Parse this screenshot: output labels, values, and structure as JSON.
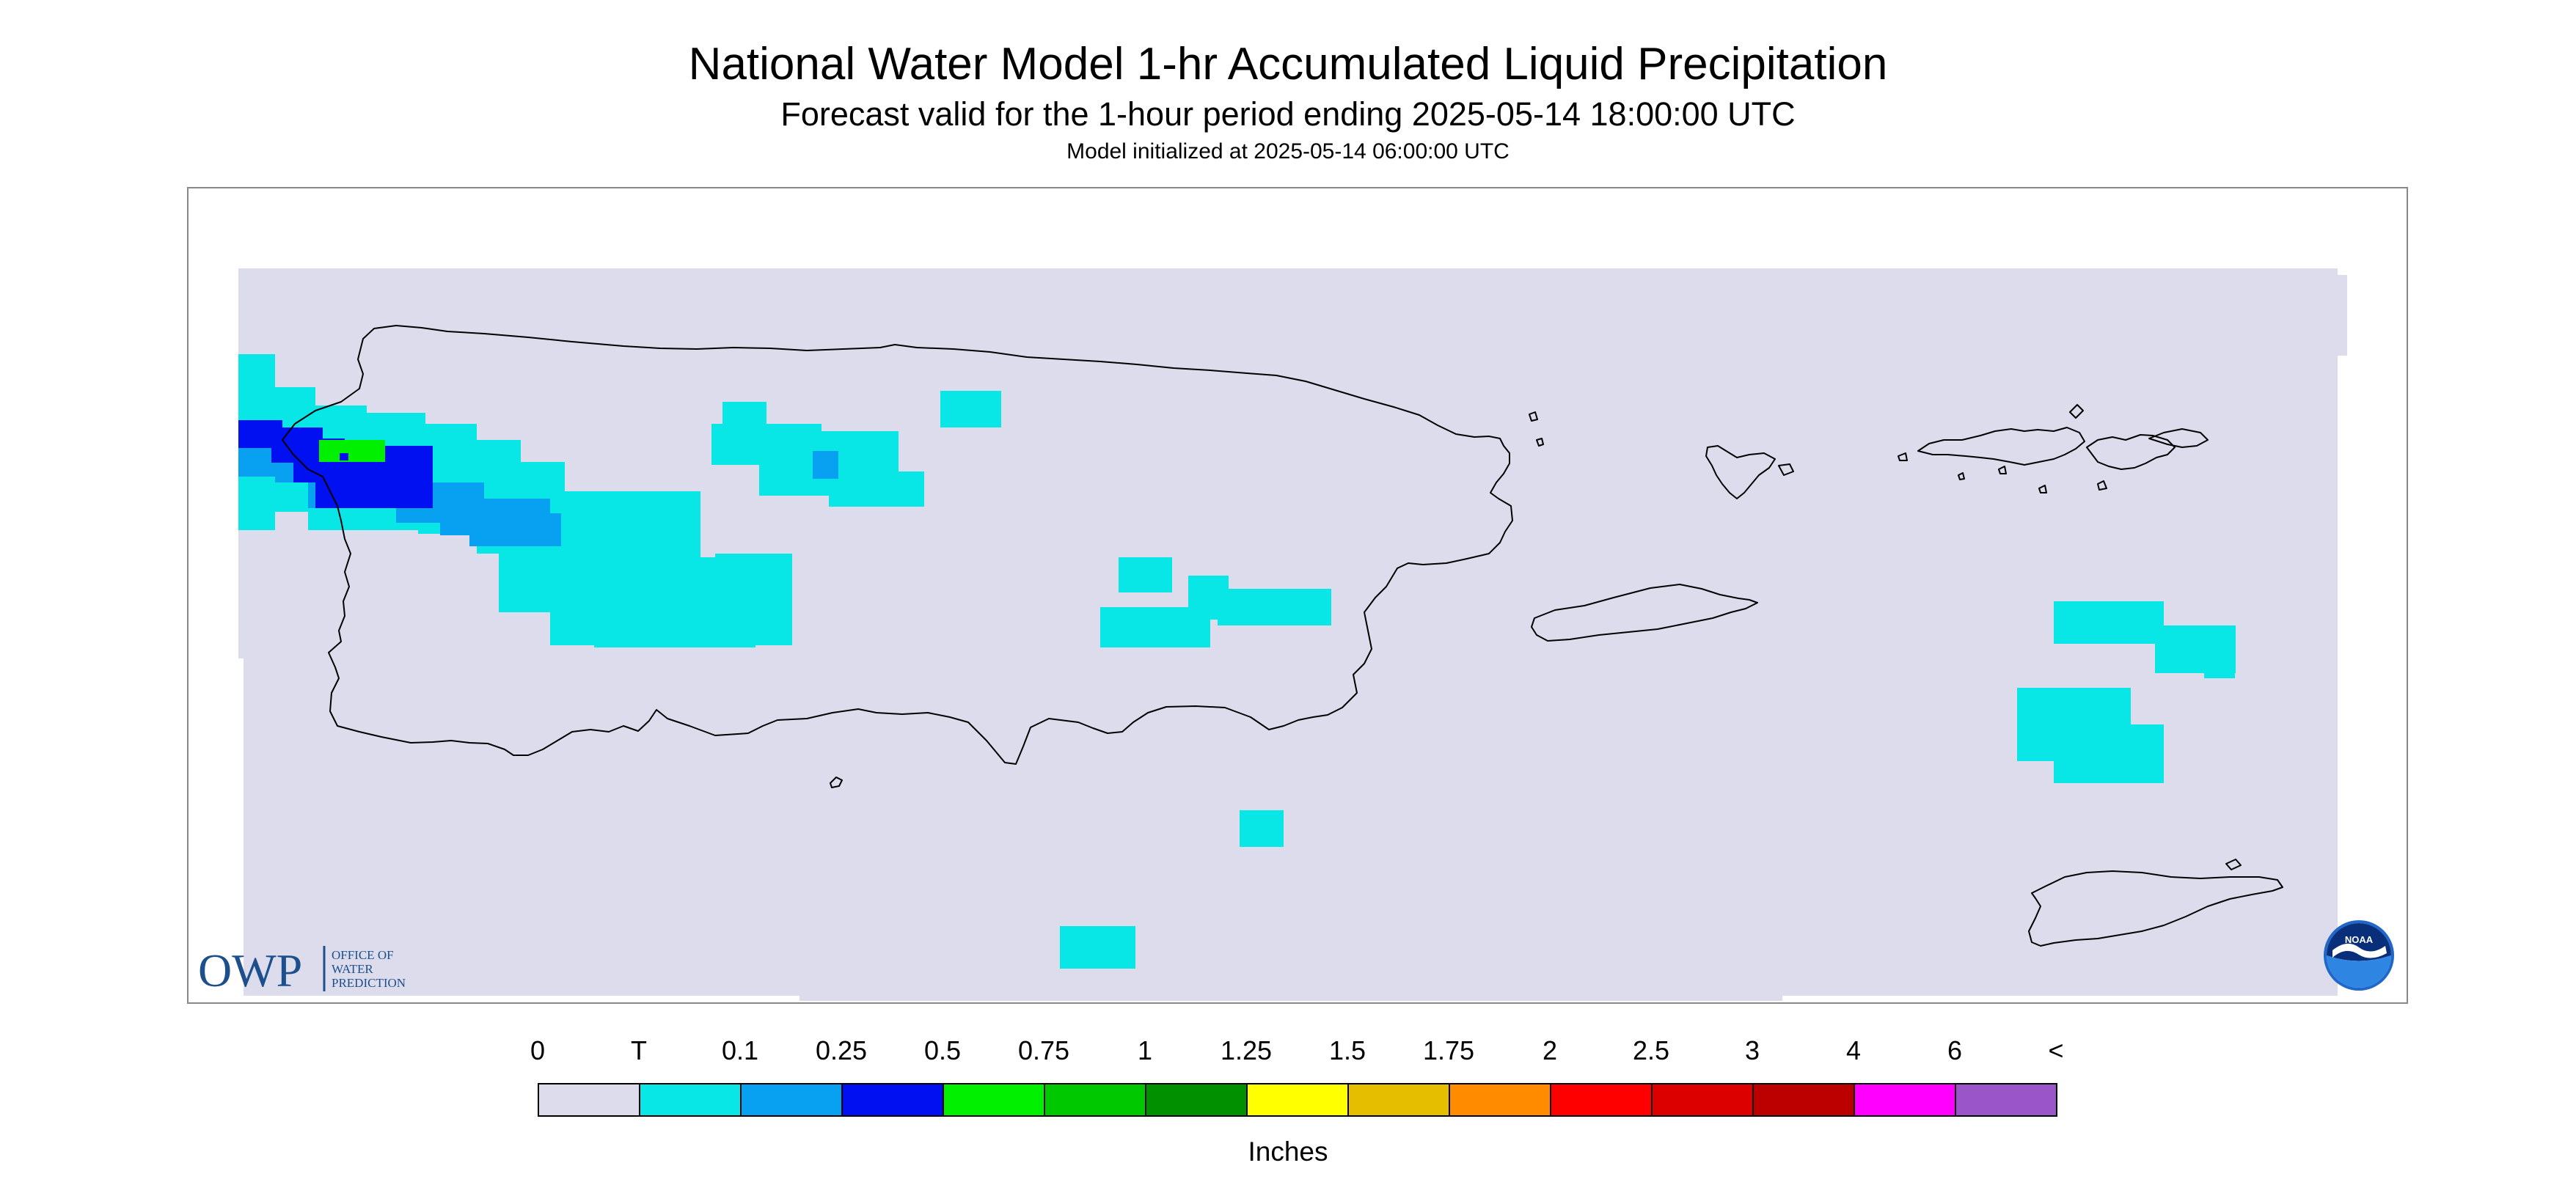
{
  "title": "National Water Model 1-hr Accumulated Liquid Precipitation",
  "subtitle": "Forecast valid for the 1-hour period ending 2025-05-14 18:00:00 UTC",
  "init_line": "Model initialized at 2025-05-14 06:00:00 UTC",
  "logo": {
    "owp_mark": "OWP",
    "owp_text": [
      "OFFICE OF",
      "WATER",
      "PREDICTION"
    ],
    "noaa_text": "NOAA"
  },
  "legend": {
    "units": "Inches",
    "labels": [
      "0",
      "T",
      "0.1",
      "0.25",
      "0.5",
      "0.75",
      "1",
      "1.25",
      "1.5",
      "1.75",
      "2",
      "2.5",
      "3",
      "4",
      "6",
      "<"
    ],
    "colors": [
      "#dcdcec",
      "#08e6e6",
      "#08a0f0",
      "#0010f0",
      "#00f000",
      "#00c800",
      "#009000",
      "#ffff00",
      "#e6be00",
      "#ff8c00",
      "#ff0000",
      "#dc0000",
      "#bc0000",
      "#ff00ff",
      "#9a55c8"
    ]
  },
  "colors": {
    "background": "#dcdcec",
    "coastline": "#000000",
    "precip_trace": "#08e6e6",
    "precip_0_1": "#08a0f0",
    "precip_0_25": "#0010f0",
    "precip_0_5": "#00f000"
  }
}
